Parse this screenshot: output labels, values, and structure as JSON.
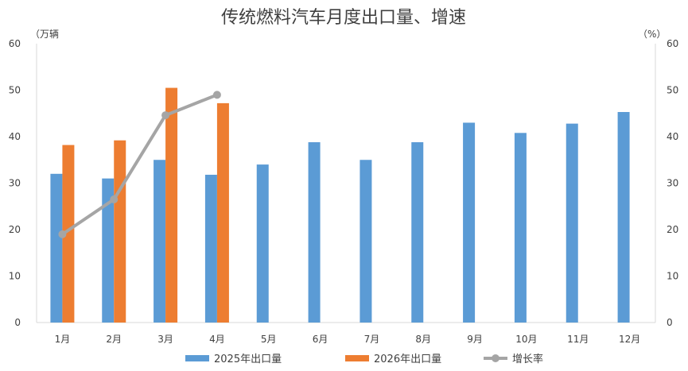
{
  "chart_data": {
    "type": "bar",
    "title": "传统燃料汽车月度出口量、增速",
    "left_unit": "（万辆",
    "right_unit": "（%）",
    "categories": [
      "1月",
      "2月",
      "3月",
      "4月",
      "5月",
      "6月",
      "7月",
      "8月",
      "9月",
      "10月",
      "11月",
      "12月"
    ],
    "left_ylim": [
      0,
      60
    ],
    "right_ylim": [
      0,
      60
    ],
    "left_ticks": [
      "0",
      "10",
      "20",
      "30",
      "40",
      "50",
      "60"
    ],
    "right_ticks": [
      "0",
      "10",
      "20",
      "30",
      "40",
      "50",
      "60"
    ],
    "grid": false,
    "legend_position": "bottom",
    "series": [
      {
        "name": "2025年出口量",
        "kind": "bar",
        "axis": "left",
        "color": "#5B9BD5",
        "values": [
          32,
          31,
          35,
          31.8,
          34,
          38.8,
          35,
          38.8,
          43,
          40.8,
          42.8,
          45.3
        ]
      },
      {
        "name": "2026年出口量",
        "kind": "bar",
        "axis": "left",
        "color": "#ED7D31",
        "values": [
          38.2,
          39.2,
          50.5,
          47.2,
          null,
          null,
          null,
          null,
          null,
          null,
          null,
          null
        ]
      },
      {
        "name": "增长率",
        "kind": "line",
        "axis": "right",
        "color": "#A5A5A5",
        "values": [
          19,
          26.5,
          44.6,
          49,
          null,
          null,
          null,
          null,
          null,
          null,
          null,
          null
        ]
      }
    ]
  }
}
